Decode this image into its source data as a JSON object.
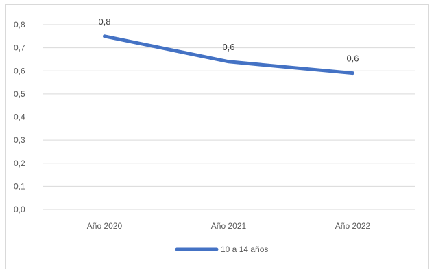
{
  "chart_data": {
    "type": "line",
    "categories": [
      "Año 2020",
      "Año 2021",
      "Año 2022"
    ],
    "series": [
      {
        "name": "10 a 14 años",
        "values": [
          0.75,
          0.64,
          0.59
        ],
        "data_labels": [
          "0,8",
          "0,6",
          "0,6"
        ],
        "color": "#4472c4"
      }
    ],
    "y_ticks": [
      "0,0",
      "0,1",
      "0,2",
      "0,3",
      "0,4",
      "0,5",
      "0,6",
      "0,7",
      "0,8"
    ],
    "ylim": [
      0,
      0.8
    ],
    "grid": true,
    "legend_position": "bottom"
  },
  "colors": {
    "gridline": "#d9d9d9",
    "axis_text": "#595959",
    "label_text": "#404040"
  }
}
